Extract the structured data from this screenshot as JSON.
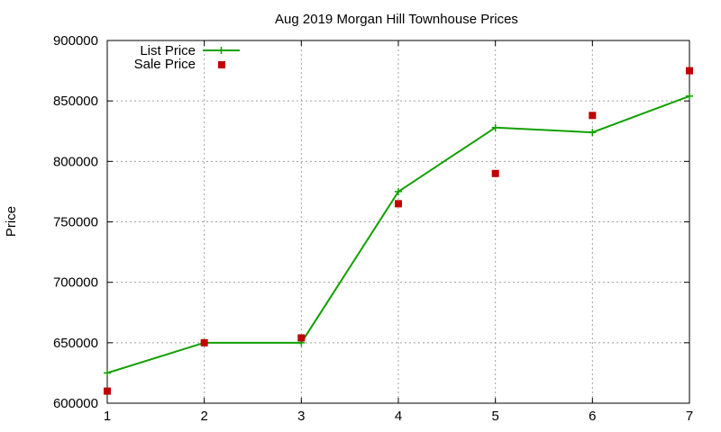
{
  "chart_data": {
    "type": "line",
    "title": "Aug 2019 Morgan Hill Townhouse Prices",
    "xlabel": "",
    "ylabel": "Price",
    "x": [
      1,
      2,
      3,
      4,
      5,
      6,
      7
    ],
    "xlim": [
      1,
      7
    ],
    "ylim": [
      600000,
      900000
    ],
    "x_ticks": [
      1,
      2,
      3,
      4,
      5,
      6,
      7
    ],
    "y_ticks": [
      600000,
      650000,
      700000,
      750000,
      800000,
      850000,
      900000
    ],
    "grid": true,
    "legend_position": "top-left",
    "series": [
      {
        "name": "List Price",
        "style": "line-with-plus-markers",
        "color": "#11a000",
        "values": [
          625000,
          650000,
          650000,
          775000,
          828000,
          824000,
          854000
        ]
      },
      {
        "name": "Sale Price",
        "style": "square-markers",
        "color": "#c00000",
        "values": [
          610000,
          650000,
          654000,
          765000,
          790000,
          838000,
          875000
        ]
      }
    ]
  }
}
